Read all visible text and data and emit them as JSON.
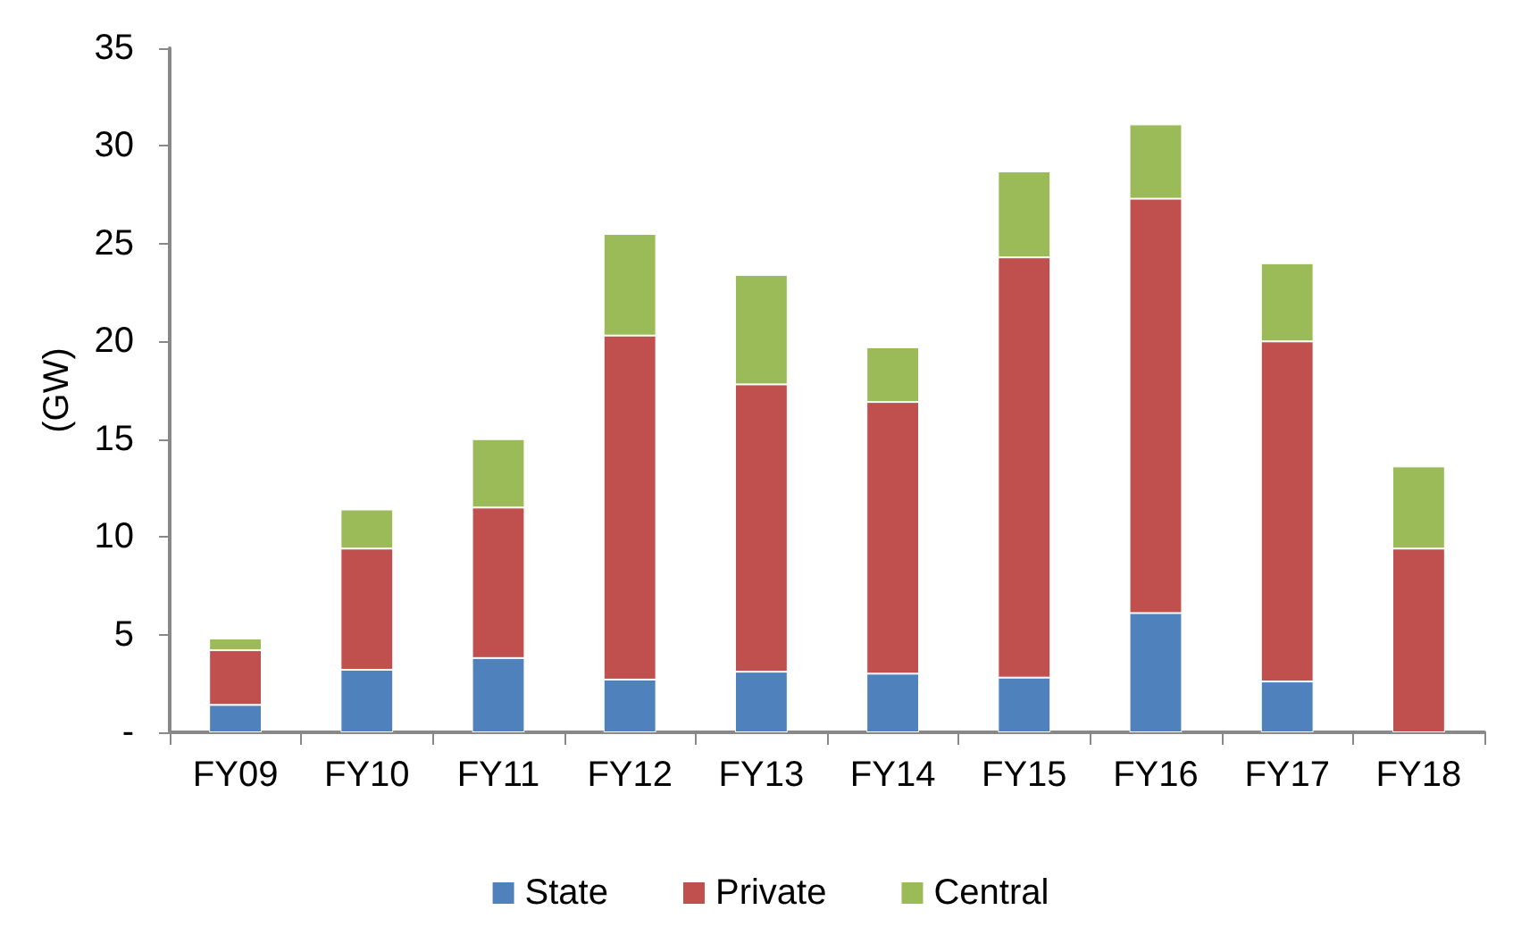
{
  "chart_data": {
    "type": "bar",
    "stacked": true,
    "ylabel": "(GW)",
    "categories": [
      "FY09",
      "FY10",
      "FY11",
      "FY12",
      "FY13",
      "FY14",
      "FY15",
      "FY16",
      "FY17",
      "FY18"
    ],
    "series": [
      {
        "name": "State",
        "color": "#4f81bd",
        "values": [
          1.4,
          3.2,
          3.8,
          2.7,
          3.1,
          3.0,
          2.8,
          6.1,
          2.6,
          null
        ]
      },
      {
        "name": "Private",
        "color": "#c0504d",
        "values": [
          2.8,
          6.2,
          7.7,
          17.6,
          14.7,
          13.9,
          21.5,
          21.2,
          17.4,
          9.4
        ]
      },
      {
        "name": "Central",
        "color": "#9bbb59",
        "values": [
          0.6,
          2.0,
          3.5,
          5.2,
          5.6,
          2.8,
          4.4,
          3.8,
          4.0,
          4.2
        ]
      }
    ],
    "ylim": [
      0,
      35
    ],
    "yticks": [
      {
        "value": 0,
        "label": "-"
      },
      5,
      10,
      15,
      20,
      25,
      30,
      35
    ],
    "grid": false,
    "legend": "bottom"
  }
}
